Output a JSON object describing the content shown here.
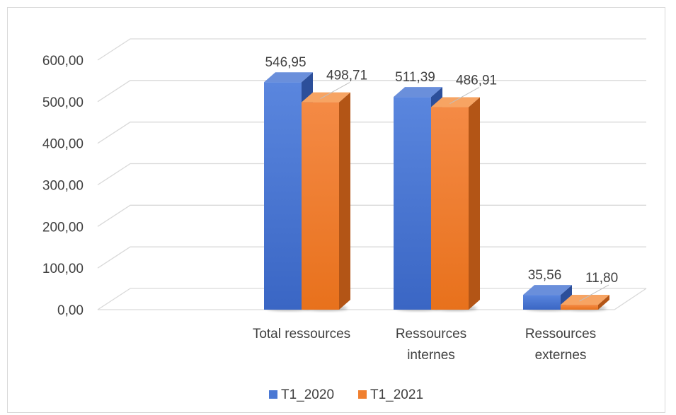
{
  "chart_data": {
    "type": "bar",
    "categories": [
      [
        "Total ressources"
      ],
      [
        "Ressources",
        "internes"
      ],
      [
        "Ressources",
        "externes"
      ]
    ],
    "series": [
      {
        "name": "T1_2020",
        "values": [
          546.95,
          511.39,
          35.56
        ],
        "labels": [
          "546,95",
          "511,39",
          "35,56"
        ]
      },
      {
        "name": "T1_2021",
        "values": [
          498.71,
          486.91,
          11.8
        ],
        "labels": [
          "498,71",
          "486,91",
          "11,80"
        ]
      }
    ],
    "y_ticks": [
      "0,00",
      "100,00",
      "200,00",
      "300,00",
      "400,00",
      "500,00",
      "600,00"
    ],
    "ylim": [
      0,
      600
    ],
    "grid": true,
    "legend_position": "bottom",
    "colors": {
      "T1_2020": {
        "front": "#4a78d4",
        "front_dark": "#3a64be",
        "side": "#2c4f9a",
        "top": "#6a8fdb"
      },
      "T1_2021": {
        "front": "#f07f2e",
        "front_dark": "#e46f1e",
        "side": "#b35516",
        "top": "#f7a463"
      },
      "grid": "#d9d9d9",
      "text": "#404040"
    }
  }
}
